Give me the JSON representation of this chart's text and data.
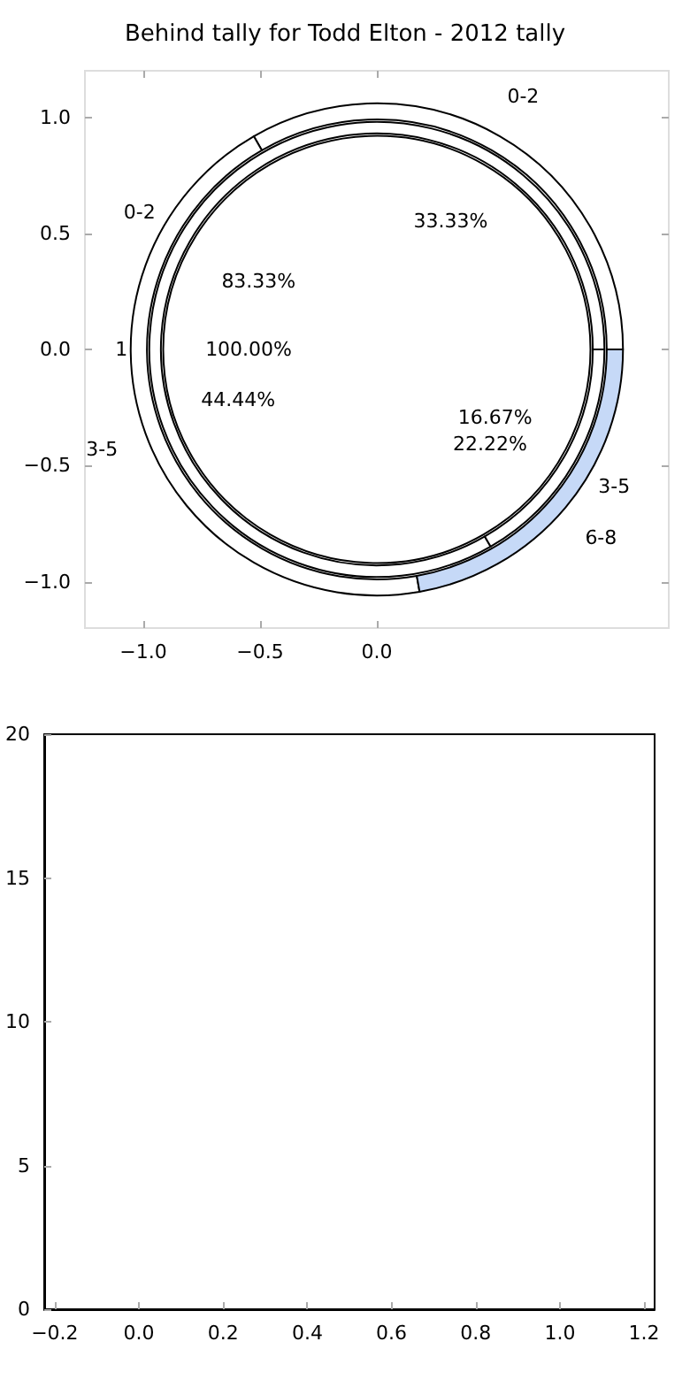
{
  "chart_data": [
    {
      "type": "scatter",
      "title": "Behind tally for Todd Elton - 2012 tally",
      "xlim": [
        -1.25,
        1.25
      ],
      "ylim": [
        -1.2,
        1.2
      ],
      "xticks": [
        {
          "value": -1,
          "label": "−1.0"
        },
        {
          "value": -0.5,
          "label": "−0.5"
        },
        {
          "value": 0,
          "label": "0.0"
        }
      ],
      "yticks": [
        {
          "value": -1,
          "label": "−1.0"
        },
        {
          "value": -0.5,
          "label": "−0.5"
        },
        {
          "value": 0,
          "label": "0.0"
        },
        {
          "value": 0.5,
          "label": "0.5"
        },
        {
          "value": 1,
          "label": "1.0"
        }
      ]
    },
    {
      "type": "pie",
      "categories": [
        "1"
      ],
      "values": [
        100
      ],
      "colors": [
        "#ffffff"
      ],
      "value_labels": [
        "100.00%"
      ]
    },
    {
      "type": "donut",
      "categories": [
        "0-2",
        "3-5"
      ],
      "values": [
        83.33,
        16.67
      ],
      "colors": [
        "#ffffff",
        "#ffffff"
      ],
      "value_labels": [
        "83.33%",
        "16.67%"
      ]
    },
    {
      "type": "donut",
      "categories": [
        "0-2",
        "3-5",
        "6-8"
      ],
      "values": [
        33.33,
        44.44,
        22.22
      ],
      "colors": [
        "#ffffff",
        "#ffffff",
        "#c6d9f7"
      ],
      "value_labels": [
        "33.33%",
        "44.44%",
        "22.22%"
      ]
    },
    {
      "type": "scatter",
      "xlim": [
        -0.225,
        1.225
      ],
      "ylim": [
        0,
        20
      ],
      "xticks": [
        {
          "value": -0.2,
          "label": "−0.2"
        },
        {
          "value": 0,
          "label": "0.0"
        },
        {
          "value": 0.2,
          "label": "0.2"
        },
        {
          "value": 0.4,
          "label": "0.4"
        },
        {
          "value": 0.6,
          "label": "0.6"
        },
        {
          "value": 0.8,
          "label": "0.8"
        },
        {
          "value": 1,
          "label": "1.0"
        },
        {
          "value": 1.2,
          "label": "1.2"
        }
      ],
      "yticks": [
        0,
        5,
        10,
        15,
        20
      ]
    }
  ]
}
